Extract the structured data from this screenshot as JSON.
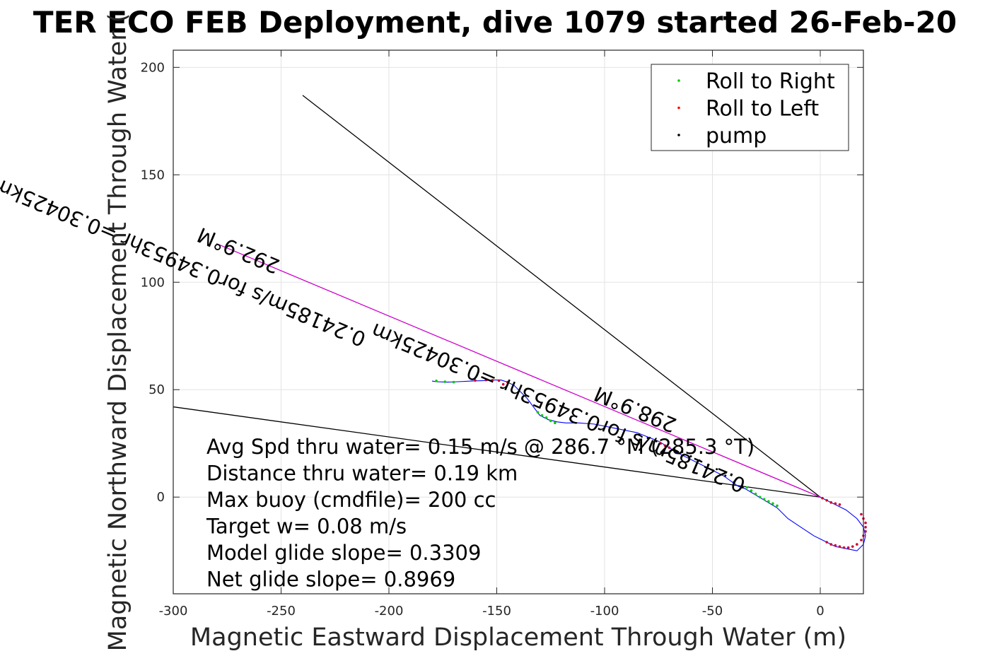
{
  "chart_data": {
    "type": "scatter",
    "title": "TER ECO FEB Deployment, dive 1079 started 26-Feb-20",
    "xlabel": "Magnetic Eastward Displacement Through Water (m)",
    "ylabel": "Magnetic Northward Displacement Through Water (",
    "xlim": [
      -300,
      20
    ],
    "ylim": [
      -45,
      208
    ],
    "xticks": [
      -300,
      -250,
      -200,
      -150,
      -100,
      -50,
      0
    ],
    "xtick_labels": [
      "-300",
      "-250",
      "-200",
      "-150",
      "-100",
      "-50",
      "0"
    ],
    "yticks": [
      0,
      50,
      100,
      150,
      200
    ],
    "ytick_labels": [
      "0",
      "50",
      "100",
      "150",
      "200"
    ],
    "grid": true,
    "legend": {
      "placement": "top-right",
      "entries": [
        {
          "label": "Roll to Right",
          "color": "#00cc00"
        },
        {
          "label": "Roll to Left",
          "color": "#ff0000"
        },
        {
          "label": "pump",
          "color": "#000000"
        }
      ]
    },
    "track": {
      "color": "#0000ff",
      "x": [
        0,
        6,
        12,
        17,
        20,
        21,
        20,
        17,
        12,
        7,
        3,
        -3,
        -9,
        -15,
        -20,
        -25,
        -30,
        -35,
        -38,
        -45,
        -55,
        -65,
        -75,
        -85,
        -95,
        -105,
        -112,
        -118,
        -122,
        -126,
        -130,
        -133,
        -136,
        -139,
        -142,
        -145,
        -148,
        -152,
        -156,
        -162,
        -168,
        -173,
        -178,
        -180
      ],
      "y": [
        0,
        -3,
        -6,
        -10,
        -14,
        -18,
        -22,
        -25,
        -24,
        -23,
        -21,
        -18,
        -14,
        -10,
        -5,
        -2,
        1,
        4,
        5,
        10,
        15,
        20,
        26,
        30,
        32,
        34,
        34.5,
        34.5,
        35,
        36,
        38,
        42,
        46,
        49,
        52,
        53.5,
        54.5,
        54.5,
        54.2,
        54,
        53.7,
        53.5,
        53.7,
        54
      ]
    },
    "roll_right_points": [
      [
        -20,
        -4
      ],
      [
        -22,
        -3
      ],
      [
        -24,
        -2
      ],
      [
        -26,
        -1
      ],
      [
        -28,
        0
      ],
      [
        -30,
        1.5
      ],
      [
        -32,
        3
      ],
      [
        -34,
        4.5
      ],
      [
        -123,
        34.5
      ],
      [
        -125,
        35.5
      ],
      [
        -127,
        37
      ],
      [
        -129,
        38
      ],
      [
        -131,
        39.5
      ],
      [
        -170,
        53.5
      ],
      [
        -174,
        53.7
      ],
      [
        -178,
        54.1
      ]
    ],
    "roll_left_points": [
      [
        1,
        -0.5
      ],
      [
        3,
        -1.5
      ],
      [
        5,
        -2.5
      ],
      [
        7,
        -3
      ],
      [
        9,
        -3.5
      ],
      [
        19,
        -8
      ],
      [
        20,
        -10
      ],
      [
        21,
        -12
      ],
      [
        21,
        -14
      ],
      [
        21,
        -16
      ],
      [
        20,
        -18
      ],
      [
        19,
        -20
      ],
      [
        17,
        -22
      ],
      [
        15,
        -23
      ],
      [
        13,
        -23.5
      ],
      [
        11,
        -23.5
      ],
      [
        9,
        -23
      ],
      [
        7,
        -22.5
      ],
      [
        5,
        -22
      ],
      [
        3,
        -21
      ],
      [
        -145,
        53.5
      ],
      [
        -147,
        52.5
      ],
      [
        -149,
        54.2
      ],
      [
        -152,
        54.4
      ],
      [
        -155,
        54.5
      ],
      [
        -160,
        54.3
      ],
      [
        -70,
        23
      ],
      [
        -72,
        24
      ],
      [
        -74,
        25
      ]
    ],
    "pump_points": [
      [
        -36,
        4.5
      ],
      [
        -40,
        7
      ],
      [
        -44,
        10
      ],
      [
        -48,
        13
      ],
      [
        -52,
        15
      ],
      [
        -56,
        17
      ],
      [
        -60,
        19
      ],
      [
        -64,
        21
      ],
      [
        -68,
        22.5
      ],
      [
        -76,
        26
      ],
      [
        -80,
        27.5
      ],
      [
        -84,
        29
      ]
    ],
    "lines": [
      {
        "name": "",
        "color": "#000000",
        "x": [
          0,
          -240
        ],
        "y": [
          0,
          187
        ]
      },
      {
        "name": "",
        "color": "#000000",
        "x": [
          0,
          -300
        ],
        "y": [
          0,
          42
        ]
      },
      {
        "name": "",
        "color": "#cc00cc",
        "x": [
          0,
          -280
        ],
        "y": [
          0,
          118
        ]
      }
    ],
    "annotations": [
      {
        "text": "292.9°M",
        "x": -250,
        "y": 110,
        "rotation": 22.9
      },
      {
        "text": "0.24185m/s for0.34953hr =0.30425km",
        "x": -210,
        "y": 76,
        "rotation": 22.9
      },
      {
        "text": "298.9°M",
        "x": -66,
        "y": 36,
        "rotation": 22.9
      },
      {
        "text": "0.24185m/s for0.34953hr =0.30425km",
        "x": -34,
        "y": 8,
        "rotation": 22.9
      }
    ],
    "info_lines": [
      "Avg Spd thru water=  0.15 m/s @ 286.7 °M (285.3 °T)",
      "Distance thru water=  0.19 km",
      "Max buoy (cmdfile)= 200 cc",
      "Target w= 0.08 m/s",
      "Model glide slope= 0.3309",
      "Net glide slope= 0.8969"
    ]
  }
}
